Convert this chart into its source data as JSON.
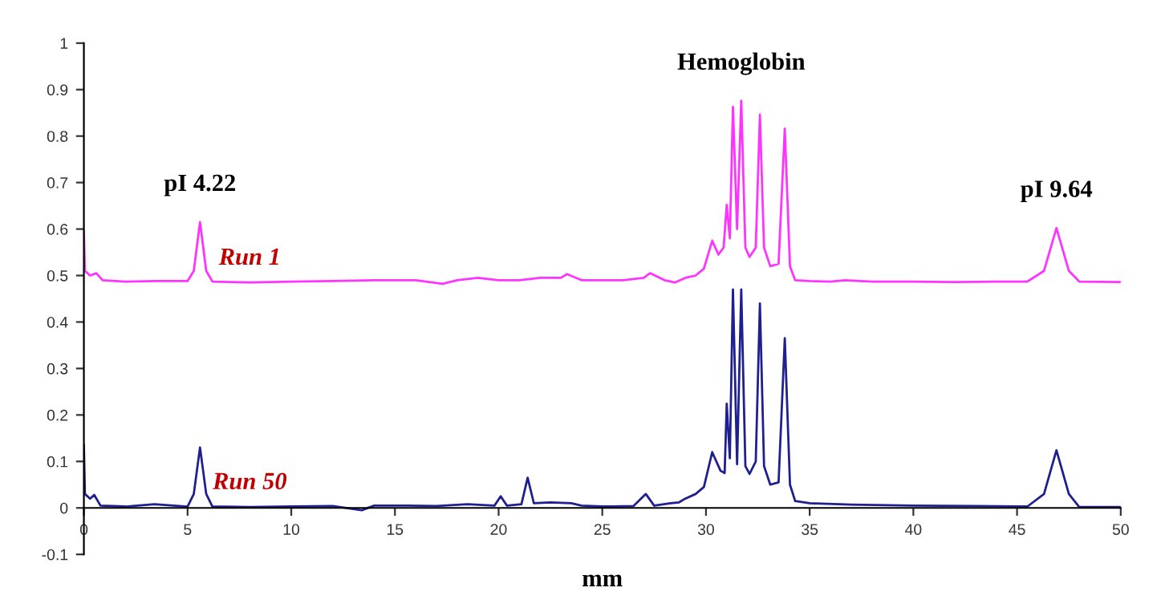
{
  "chart_data": {
    "type": "line",
    "xlabel": "mm",
    "xlim": [
      0,
      50
    ],
    "xticks": [
      0,
      5,
      10,
      15,
      20,
      25,
      30,
      35,
      40,
      45,
      50
    ],
    "ylim": [
      -0.1,
      1
    ],
    "yticks": [
      -0.1,
      0,
      0.1,
      0.2,
      0.3,
      0.4,
      0.5,
      0.6,
      0.7,
      0.8,
      0.9,
      1
    ],
    "grid": false,
    "legend": false,
    "marker": "none",
    "line_style": "solid",
    "annotations": [
      {
        "text": "pI 4.22",
        "x": 5.6,
        "y": 0.615
      },
      {
        "text": "Hemoglobin",
        "x": 31.7,
        "y": 0.876
      },
      {
        "text": "pI 9.64",
        "x": 46.9,
        "y": 0.602
      }
    ],
    "series": [
      {
        "name": "Run 1",
        "color": "#ff33ff",
        "x": [
          0,
          0.05,
          0.3,
          0.6,
          0.9,
          2,
          3.5,
          5,
          5.3,
          5.6,
          5.9,
          6.2,
          8,
          10,
          12,
          14,
          16,
          17.3,
          18,
          19,
          20,
          21,
          22,
          23,
          23.3,
          24,
          25,
          26,
          27,
          27.3,
          28,
          28.5,
          29,
          29.5,
          29.9,
          30.3,
          30.6,
          30.85,
          31.0,
          31.15,
          31.3,
          31.5,
          31.7,
          31.9,
          32.1,
          32.4,
          32.6,
          32.8,
          33.1,
          33.5,
          33.8,
          34.05,
          34.3,
          35,
          36,
          36.7,
          38,
          40,
          42,
          44,
          45.5,
          46.3,
          46.9,
          47.5,
          48,
          50
        ],
        "values": [
          0.595,
          0.51,
          0.5,
          0.505,
          0.49,
          0.487,
          0.488,
          0.488,
          0.51,
          0.615,
          0.51,
          0.487,
          0.485,
          0.487,
          0.488,
          0.49,
          0.49,
          0.482,
          0.49,
          0.495,
          0.49,
          0.49,
          0.495,
          0.495,
          0.503,
          0.49,
          0.49,
          0.49,
          0.495,
          0.505,
          0.49,
          0.485,
          0.495,
          0.5,
          0.515,
          0.575,
          0.545,
          0.56,
          0.652,
          0.58,
          0.863,
          0.6,
          0.876,
          0.56,
          0.54,
          0.56,
          0.846,
          0.56,
          0.52,
          0.525,
          0.816,
          0.52,
          0.49,
          0.488,
          0.487,
          0.49,
          0.487,
          0.487,
          0.486,
          0.487,
          0.487,
          0.51,
          0.602,
          0.51,
          0.487,
          0.486
        ]
      },
      {
        "name": "Run 50",
        "color": "#1f1f8f",
        "x": [
          0,
          0.05,
          0.3,
          0.5,
          0.8,
          2,
          3.4,
          5,
          5.3,
          5.6,
          5.9,
          6.2,
          8,
          10,
          12,
          13.4,
          14,
          15.5,
          17,
          18.5,
          19.8,
          20.1,
          20.4,
          21.1,
          21.4,
          21.7,
          22.5,
          23.5,
          24,
          25,
          26.5,
          27.1,
          27.5,
          28.3,
          28.7,
          29,
          29.5,
          29.9,
          30.3,
          30.7,
          30.9,
          31.0,
          31.15,
          31.3,
          31.5,
          31.7,
          31.9,
          32.1,
          32.4,
          32.6,
          32.8,
          33.1,
          33.5,
          33.8,
          34.05,
          34.3,
          35,
          37,
          40,
          43,
          45.5,
          46.3,
          46.9,
          47.5,
          48,
          50
        ],
        "values": [
          0.135,
          0.03,
          0.02,
          0.028,
          0.005,
          0.003,
          0.008,
          0.003,
          0.03,
          0.13,
          0.03,
          0.003,
          0.002,
          0.003,
          0.004,
          -0.005,
          0.005,
          0.005,
          0.004,
          0.008,
          0.005,
          0.025,
          0.005,
          0.008,
          0.065,
          0.01,
          0.012,
          0.01,
          0.005,
          0.003,
          0.004,
          0.03,
          0.005,
          0.01,
          0.012,
          0.02,
          0.03,
          0.045,
          0.12,
          0.08,
          0.075,
          0.224,
          0.107,
          0.47,
          0.094,
          0.47,
          0.09,
          0.073,
          0.1,
          0.44,
          0.09,
          0.05,
          0.055,
          0.365,
          0.05,
          0.015,
          0.01,
          0.007,
          0.005,
          0.004,
          0.003,
          0.03,
          0.124,
          0.03,
          0.002,
          0.002
        ]
      }
    ]
  }
}
